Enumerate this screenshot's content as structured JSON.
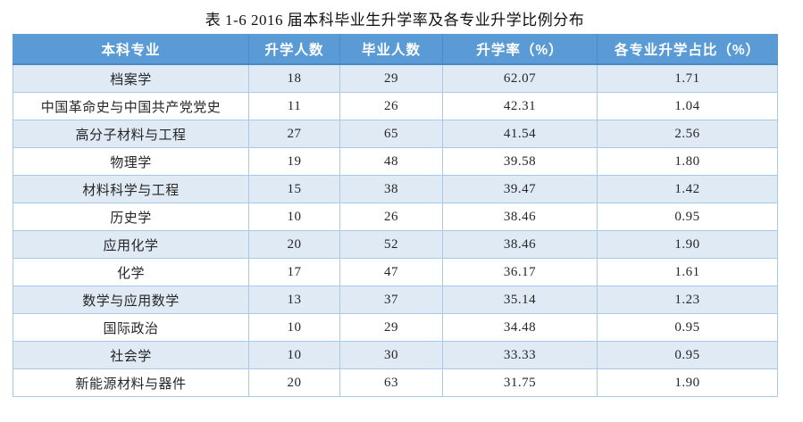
{
  "title": "表 1-6 2016 届本科毕业生升学率及各专业升学比例分布",
  "colors": {
    "header_bg": "#5b9bd5",
    "header_text": "#ffffff",
    "row_alt_bg": "#dfeaf5",
    "row_bg": "#ffffff",
    "grid_line": "#a9c9e6",
    "body_text": "#262626"
  },
  "table": {
    "columns": [
      "本科专业",
      "升学人数",
      "毕业人数",
      "升学率（%）",
      "各专业升学占比（%）"
    ],
    "rows": [
      [
        "档案学",
        "18",
        "29",
        "62.07",
        "1.71"
      ],
      [
        "中国革命史与中国共产党党史",
        "11",
        "26",
        "42.31",
        "1.04"
      ],
      [
        "高分子材料与工程",
        "27",
        "65",
        "41.54",
        "2.56"
      ],
      [
        "物理学",
        "19",
        "48",
        "39.58",
        "1.80"
      ],
      [
        "材料科学与工程",
        "15",
        "38",
        "39.47",
        "1.42"
      ],
      [
        "历史学",
        "10",
        "26",
        "38.46",
        "0.95"
      ],
      [
        "应用化学",
        "20",
        "52",
        "38.46",
        "1.90"
      ],
      [
        "化学",
        "17",
        "47",
        "36.17",
        "1.61"
      ],
      [
        "数学与应用数学",
        "13",
        "37",
        "35.14",
        "1.23"
      ],
      [
        "国际政治",
        "10",
        "29",
        "34.48",
        "0.95"
      ],
      [
        "社会学",
        "10",
        "30",
        "33.33",
        "0.95"
      ],
      [
        "新能源材料与器件",
        "20",
        "63",
        "31.75",
        "1.90"
      ]
    ]
  },
  "chart_data": {
    "type": "table",
    "title": "表 1-6 2016 届本科毕业生升学率及各专业升学比例分布",
    "columns": [
      "本科专业",
      "升学人数",
      "毕业人数",
      "升学率（%）",
      "各专业升学占比（%）"
    ],
    "rows": [
      [
        "档案学",
        18,
        29,
        62.07,
        1.71
      ],
      [
        "中国革命史与中国共产党党史",
        11,
        26,
        42.31,
        1.04
      ],
      [
        "高分子材料与工程",
        27,
        65,
        41.54,
        2.56
      ],
      [
        "物理学",
        19,
        48,
        39.58,
        1.8
      ],
      [
        "材料科学与工程",
        15,
        38,
        39.47,
        1.42
      ],
      [
        "历史学",
        10,
        26,
        38.46,
        0.95
      ],
      [
        "应用化学",
        20,
        52,
        38.46,
        1.9
      ],
      [
        "化学",
        17,
        47,
        36.17,
        1.61
      ],
      [
        "数学与应用数学",
        13,
        37,
        35.14,
        1.23
      ],
      [
        "国际政治",
        10,
        29,
        34.48,
        0.95
      ],
      [
        "社会学",
        10,
        30,
        33.33,
        0.95
      ],
      [
        "新能源材料与器件",
        20,
        63,
        31.75,
        1.9
      ]
    ]
  }
}
